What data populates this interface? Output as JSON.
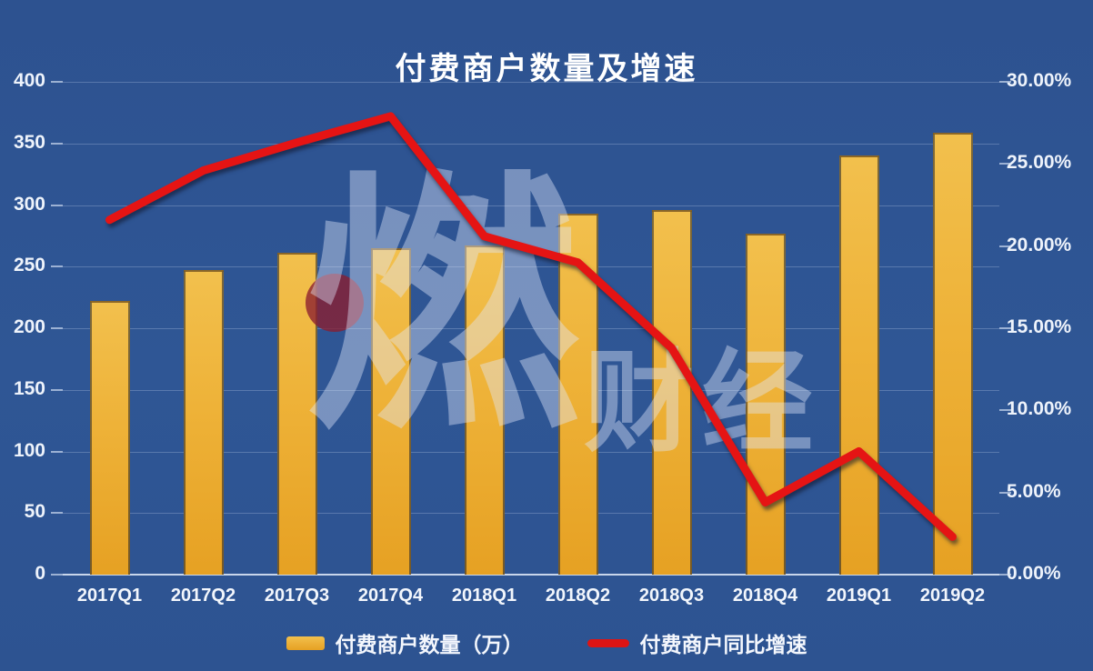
{
  "title": "付费商户数量及增速",
  "chart_data": {
    "type": "bar",
    "subtype": "combo-bar-line",
    "title": "付费商户数量及增速",
    "categories": [
      "2017Q1",
      "2017Q2",
      "2017Q3",
      "2017Q4",
      "2018Q1",
      "2018Q2",
      "2018Q3",
      "2018Q4",
      "2019Q1",
      "2019Q2"
    ],
    "series": [
      {
        "name": "付费商户数量（万）",
        "type": "bar",
        "axis": "left",
        "color": "#EFB42D",
        "values": [
          222,
          247,
          261,
          265,
          267,
          293,
          296,
          277,
          340,
          359
        ]
      },
      {
        "name": "付费商户同比增速",
        "type": "line",
        "axis": "right",
        "color": "#E51414",
        "unit": "%",
        "values": [
          21.6,
          24.6,
          26.3,
          27.9,
          20.6,
          19.0,
          13.8,
          4.4,
          7.5,
          2.3
        ]
      }
    ],
    "left_axis": {
      "min": 0,
      "max": 400,
      "step": 50,
      "ticks": [
        "400",
        "350",
        "300",
        "250",
        "200",
        "150",
        "100",
        "50",
        "0"
      ]
    },
    "right_axis": {
      "min": 0,
      "max": 30,
      "step": 5,
      "ticks": [
        "30.00%",
        "25.00%",
        "20.00%",
        "15.00%",
        "10.00%",
        "5.00%",
        "0.00%"
      ]
    },
    "grid": true,
    "legend_position": "bottom"
  },
  "watermark": {
    "main": "燃",
    "sub": "财经"
  },
  "colors": {
    "background": "#2F5695",
    "bar_top": "#F2C04D",
    "bar_bottom": "#E6A123",
    "line": "#E51414",
    "text": "#FFFFFF",
    "gridline": "#C8D7F0"
  }
}
